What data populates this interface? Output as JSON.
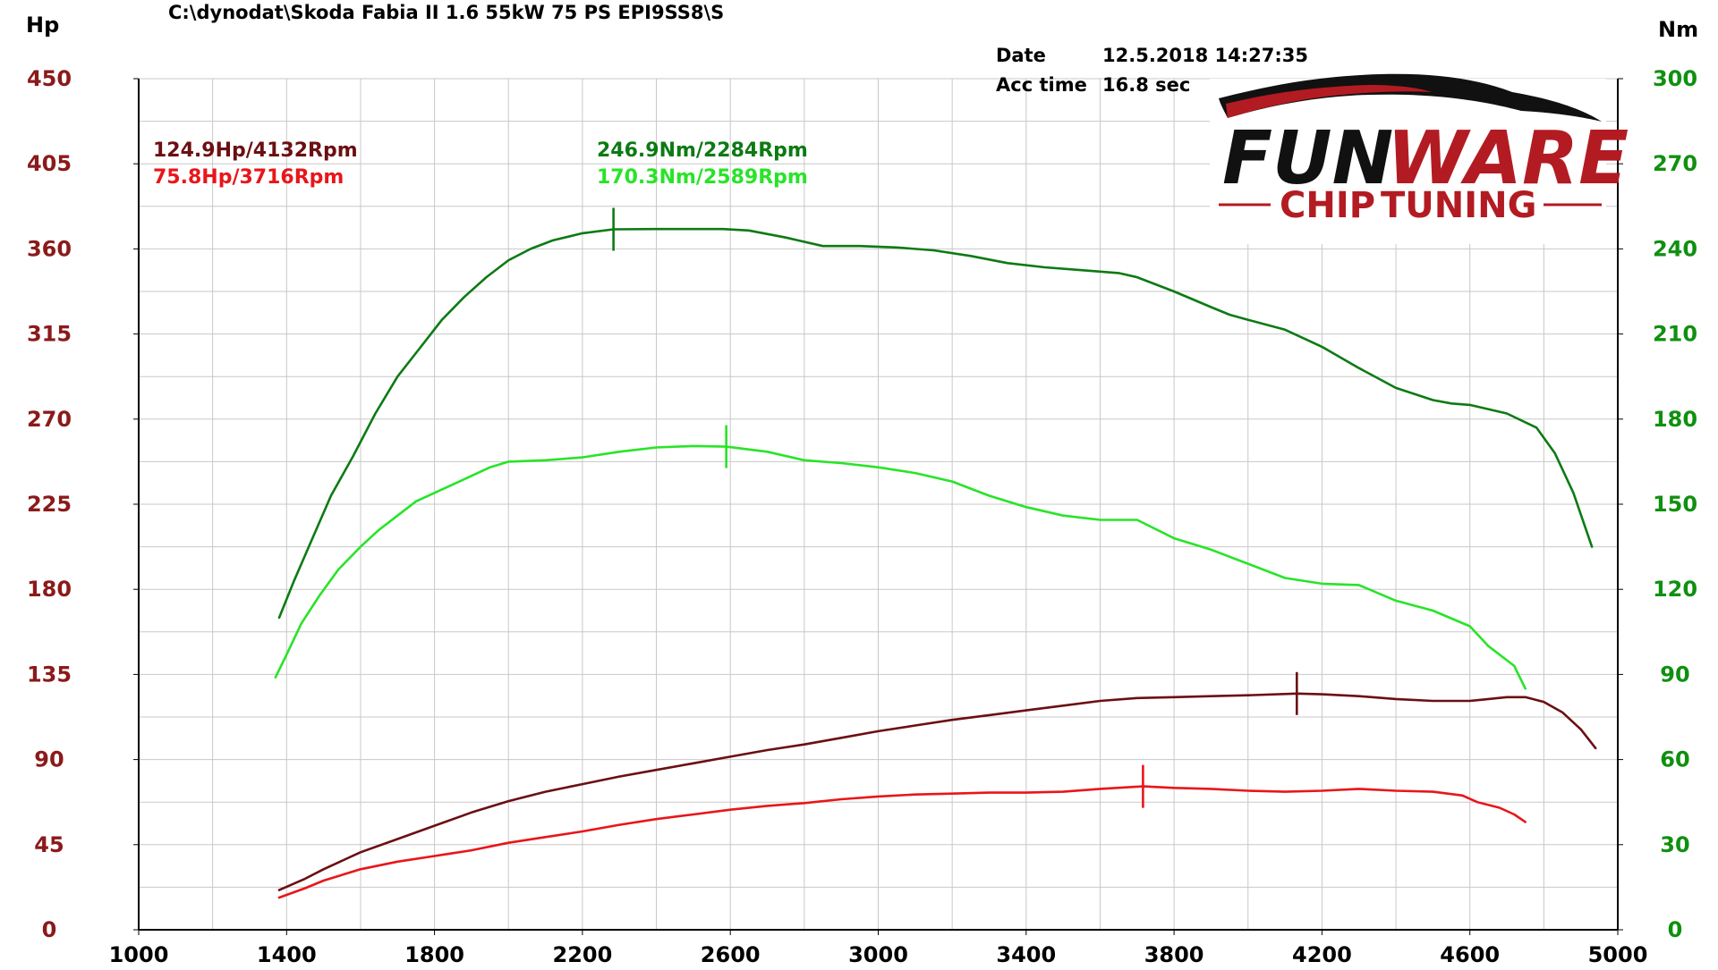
{
  "header": {
    "file_path": "C:\\dynodat\\Skoda Fabia II 1.6 55kW 75 PS EPI9SS8\\S",
    "date_label": "Date",
    "date_value": "12.5.2018 14:27:35",
    "acc_label": "Acc time",
    "acc_value": "16.8 sec"
  },
  "logo": {
    "line1_a": "FUN",
    "line1_b": "WARE",
    "line2_a": "CHIP",
    "line2_b": "TUNING"
  },
  "colors": {
    "hp_tuned": "#6b0f12",
    "hp_stock": "#e8161a",
    "nm_tuned": "#0d7a14",
    "nm_stock": "#28e428",
    "axis_left": "#8b1a1a",
    "axis_right": "#109010",
    "logo_red": "#b31b22"
  },
  "chart_data": {
    "type": "line",
    "y_left_label": "Hp",
    "y_right_label": "Nm",
    "xlim": [
      1000,
      5000
    ],
    "ylim_left": [
      0,
      450
    ],
    "ylim_right": [
      0,
      300
    ],
    "x_ticks": [
      1000,
      1400,
      1800,
      2200,
      2600,
      3000,
      3400,
      3800,
      4200,
      4600,
      5000
    ],
    "y_left_ticks": [
      0,
      45,
      90,
      135,
      180,
      225,
      270,
      315,
      360,
      405,
      450
    ],
    "y_right_ticks": [
      0,
      30,
      60,
      90,
      120,
      150,
      180,
      210,
      240,
      270,
      300
    ],
    "grid": true,
    "annotations": [
      {
        "text": "124.9Hp/4132Rpm",
        "series": "hp_tuned"
      },
      {
        "text": "75.8Hp/3716Rpm",
        "series": "hp_stock"
      },
      {
        "text": "246.9Nm/2284Rpm",
        "series": "nm_tuned"
      },
      {
        "text": "170.3Nm/2589Rpm",
        "series": "nm_stock"
      }
    ],
    "series": [
      {
        "id": "nm_tuned",
        "axis": "right",
        "peak": [
          2284,
          246.9
        ],
        "points": [
          [
            1380,
            110
          ],
          [
            1420,
            123
          ],
          [
            1470,
            138
          ],
          [
            1520,
            153
          ],
          [
            1580,
            167
          ],
          [
            1640,
            182
          ],
          [
            1700,
            195
          ],
          [
            1760,
            205
          ],
          [
            1820,
            215
          ],
          [
            1880,
            223
          ],
          [
            1940,
            230
          ],
          [
            2000,
            236
          ],
          [
            2060,
            240
          ],
          [
            2120,
            243
          ],
          [
            2200,
            245.5
          ],
          [
            2284,
            246.9
          ],
          [
            2400,
            247
          ],
          [
            2500,
            247
          ],
          [
            2580,
            247
          ],
          [
            2650,
            246.5
          ],
          [
            2750,
            244
          ],
          [
            2850,
            241
          ],
          [
            2950,
            241
          ],
          [
            3050,
            240.5
          ],
          [
            3150,
            239.5
          ],
          [
            3250,
            237.5
          ],
          [
            3350,
            235
          ],
          [
            3450,
            233.5
          ],
          [
            3550,
            232.5
          ],
          [
            3650,
            231.5
          ],
          [
            3700,
            230
          ],
          [
            3800,
            225
          ],
          [
            3900,
            219.5
          ],
          [
            3950,
            216.8
          ],
          [
            4000,
            215
          ],
          [
            4100,
            211.5
          ],
          [
            4200,
            205.5
          ],
          [
            4300,
            198
          ],
          [
            4400,
            191
          ],
          [
            4500,
            186.7
          ],
          [
            4550,
            185.5
          ],
          [
            4600,
            185
          ],
          [
            4700,
            182
          ],
          [
            4780,
            177
          ],
          [
            4830,
            168
          ],
          [
            4880,
            154
          ],
          [
            4930,
            135
          ]
        ]
      },
      {
        "id": "nm_stock",
        "axis": "right",
        "peak": [
          2589,
          170.3
        ],
        "points": [
          [
            1370,
            89
          ],
          [
            1400,
            97
          ],
          [
            1440,
            108
          ],
          [
            1490,
            118
          ],
          [
            1540,
            127
          ],
          [
            1600,
            135
          ],
          [
            1650,
            141
          ],
          [
            1700,
            146
          ],
          [
            1750,
            151
          ],
          [
            1800,
            154
          ],
          [
            1850,
            157
          ],
          [
            1900,
            160
          ],
          [
            1950,
            163
          ],
          [
            2000,
            165
          ],
          [
            2100,
            165.5
          ],
          [
            2200,
            166.5
          ],
          [
            2300,
            168.5
          ],
          [
            2400,
            170
          ],
          [
            2500,
            170.5
          ],
          [
            2589,
            170.3
          ],
          [
            2700,
            168.5
          ],
          [
            2800,
            165.5
          ],
          [
            2900,
            164.5
          ],
          [
            3000,
            163
          ],
          [
            3100,
            161
          ],
          [
            3200,
            158
          ],
          [
            3300,
            153
          ],
          [
            3400,
            149
          ],
          [
            3500,
            146
          ],
          [
            3600,
            144.5
          ],
          [
            3700,
            144.5
          ],
          [
            3800,
            138
          ],
          [
            3900,
            134
          ],
          [
            4000,
            129
          ],
          [
            4100,
            124
          ],
          [
            4200,
            122
          ],
          [
            4300,
            121.5
          ],
          [
            4400,
            116
          ],
          [
            4500,
            112.5
          ],
          [
            4600,
            107
          ],
          [
            4650,
            100
          ],
          [
            4700,
            95
          ],
          [
            4720,
            93
          ],
          [
            4750,
            85
          ]
        ]
      },
      {
        "id": "hp_tuned",
        "axis": "left",
        "peak": [
          4132,
          124.9
        ],
        "points": [
          [
            1380,
            21
          ],
          [
            1450,
            27
          ],
          [
            1500,
            32
          ],
          [
            1600,
            41
          ],
          [
            1700,
            48
          ],
          [
            1800,
            55
          ],
          [
            1900,
            62
          ],
          [
            2000,
            68
          ],
          [
            2100,
            73
          ],
          [
            2200,
            77
          ],
          [
            2300,
            81
          ],
          [
            2400,
            84.5
          ],
          [
            2500,
            88
          ],
          [
            2600,
            91.5
          ],
          [
            2700,
            95
          ],
          [
            2800,
            98
          ],
          [
            2900,
            101.5
          ],
          [
            3000,
            105
          ],
          [
            3100,
            108
          ],
          [
            3200,
            111
          ],
          [
            3300,
            113.5
          ],
          [
            3400,
            116
          ],
          [
            3500,
            118.5
          ],
          [
            3600,
            121
          ],
          [
            3700,
            122.5
          ],
          [
            3800,
            123
          ],
          [
            3900,
            123.5
          ],
          [
            4000,
            124
          ],
          [
            4132,
            124.9
          ],
          [
            4200,
            124.5
          ],
          [
            4300,
            123.5
          ],
          [
            4400,
            122
          ],
          [
            4500,
            121
          ],
          [
            4600,
            121
          ],
          [
            4650,
            122
          ],
          [
            4700,
            123
          ],
          [
            4750,
            123
          ],
          [
            4800,
            120.5
          ],
          [
            4850,
            115
          ],
          [
            4900,
            106
          ],
          [
            4940,
            96
          ]
        ]
      },
      {
        "id": "hp_stock",
        "axis": "left",
        "peak": [
          3716,
          75.8
        ],
        "points": [
          [
            1380,
            17
          ],
          [
            1450,
            22
          ],
          [
            1500,
            26
          ],
          [
            1600,
            32
          ],
          [
            1700,
            36
          ],
          [
            1800,
            39
          ],
          [
            1900,
            42
          ],
          [
            2000,
            46
          ],
          [
            2100,
            49
          ],
          [
            2200,
            52
          ],
          [
            2300,
            55.5
          ],
          [
            2400,
            58.5
          ],
          [
            2500,
            61
          ],
          [
            2600,
            63.5
          ],
          [
            2700,
            65.5
          ],
          [
            2800,
            67
          ],
          [
            2900,
            69
          ],
          [
            3000,
            70.5
          ],
          [
            3100,
            71.5
          ],
          [
            3200,
            72
          ],
          [
            3300,
            72.5
          ],
          [
            3400,
            72.5
          ],
          [
            3500,
            73
          ],
          [
            3600,
            74.5
          ],
          [
            3716,
            75.8
          ],
          [
            3800,
            75
          ],
          [
            3900,
            74.5
          ],
          [
            4000,
            73.5
          ],
          [
            4100,
            73
          ],
          [
            4200,
            73.5
          ],
          [
            4300,
            74.5
          ],
          [
            4400,
            73.5
          ],
          [
            4500,
            73
          ],
          [
            4580,
            71
          ],
          [
            4620,
            67.5
          ],
          [
            4680,
            64.5
          ],
          [
            4720,
            61
          ],
          [
            4750,
            57
          ]
        ]
      }
    ]
  }
}
